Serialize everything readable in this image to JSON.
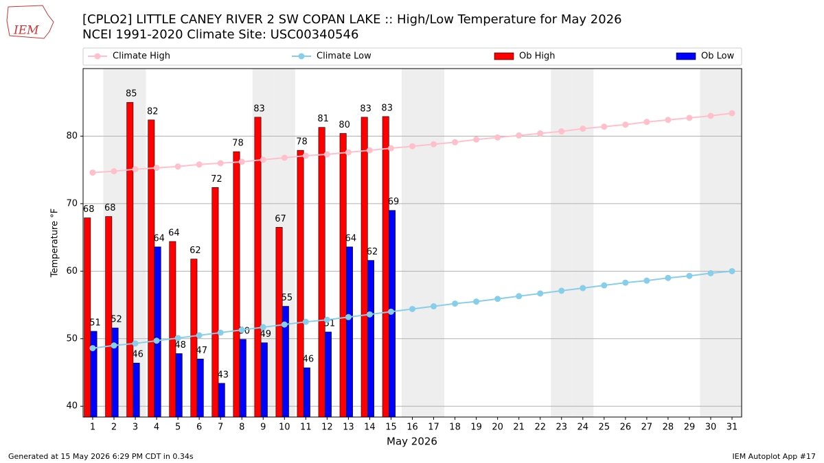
{
  "header": {
    "logo": "IEM"
  },
  "chart_data": {
    "type": "bar_line",
    "title": "[CPLO2] LITTLE CANEY RIVER 2 SW COPAN LAKE :: High/Low Temperature for May 2026",
    "subtitle": "NCEI 1991-2020 Climate Site: USC00340546",
    "xlabel": "May 2026",
    "ylabel": "Temperature °F",
    "x": [
      1,
      2,
      3,
      4,
      5,
      6,
      7,
      8,
      9,
      10,
      11,
      12,
      13,
      14,
      15,
      16,
      17,
      18,
      19,
      20,
      21,
      22,
      23,
      24,
      25,
      26,
      27,
      28,
      29,
      30,
      31
    ],
    "xlim": [
      0.55,
      31.45
    ],
    "xticks": [
      1,
      2,
      3,
      4,
      5,
      6,
      7,
      8,
      9,
      10,
      11,
      12,
      13,
      14,
      15,
      16,
      17,
      18,
      19,
      20,
      21,
      22,
      23,
      24,
      25,
      26,
      27,
      28,
      29,
      30,
      31
    ],
    "ylim": [
      38.4,
      90
    ],
    "yticks": [
      40,
      50,
      60,
      70,
      80
    ],
    "grid": true,
    "shaded_x": [
      2,
      3,
      9,
      10,
      16,
      17,
      23,
      24,
      30,
      31
    ],
    "series": [
      {
        "name": "Climate High",
        "kind": "line",
        "color": "#ffc0cb",
        "values": [
          74.6,
          74.8,
          75.1,
          75.3,
          75.5,
          75.8,
          76.0,
          76.2,
          76.5,
          76.8,
          77.1,
          77.3,
          77.6,
          77.9,
          78.2,
          78.5,
          78.8,
          79.1,
          79.5,
          79.8,
          80.1,
          80.4,
          80.7,
          81.1,
          81.4,
          81.7,
          82.1,
          82.4,
          82.7,
          83.0,
          83.4
        ]
      },
      {
        "name": "Climate Low",
        "kind": "line",
        "color": "#87ceeb",
        "values": [
          48.6,
          49.0,
          49.3,
          49.7,
          50.1,
          50.5,
          50.9,
          51.3,
          51.7,
          52.1,
          52.5,
          52.8,
          53.2,
          53.6,
          54.0,
          54.4,
          54.8,
          55.2,
          55.5,
          55.9,
          56.3,
          56.7,
          57.1,
          57.5,
          57.9,
          58.3,
          58.6,
          59.0,
          59.3,
          59.7,
          60.0
        ]
      },
      {
        "name": "Ob High",
        "kind": "bar",
        "color": "#ff0000",
        "values": [
          67.9,
          68.1,
          85.0,
          82.4,
          64.4,
          61.8,
          72.4,
          77.7,
          82.8,
          66.5,
          77.9,
          81.3,
          80.4,
          82.8,
          82.9,
          null,
          null,
          null,
          null,
          null,
          null,
          null,
          null,
          null,
          null,
          null,
          null,
          null,
          null,
          null,
          null
        ],
        "value_labels": [
          "68",
          "68",
          "85",
          "82",
          "64",
          "62",
          "72",
          "78",
          "83",
          "67",
          "78",
          "81",
          "80",
          "83",
          "83",
          null,
          null,
          null,
          null,
          null,
          null,
          null,
          null,
          null,
          null,
          null,
          null,
          null,
          null,
          null,
          null
        ]
      },
      {
        "name": "Ob Low",
        "kind": "bar",
        "color": "#0000ff",
        "values": [
          51.1,
          51.6,
          46.4,
          63.6,
          47.8,
          47.0,
          43.4,
          49.9,
          49.4,
          54.8,
          45.7,
          51.0,
          63.6,
          61.6,
          69.0,
          null,
          null,
          null,
          null,
          null,
          null,
          null,
          null,
          null,
          null,
          null,
          null,
          null,
          null,
          null,
          null
        ],
        "value_labels": [
          "51",
          "52",
          "46",
          "64",
          "48",
          "47",
          "43",
          "50",
          "49",
          "55",
          "46",
          "51",
          "64",
          "62",
          "69",
          null,
          null,
          null,
          null,
          null,
          null,
          null,
          null,
          null,
          null,
          null,
          null,
          null,
          null,
          null,
          null
        ]
      }
    ]
  },
  "footer": {
    "left": "Generated at 15 May 2026 6:29 PM CDT in 0.34s",
    "right": "IEM Autoplot App #17"
  }
}
